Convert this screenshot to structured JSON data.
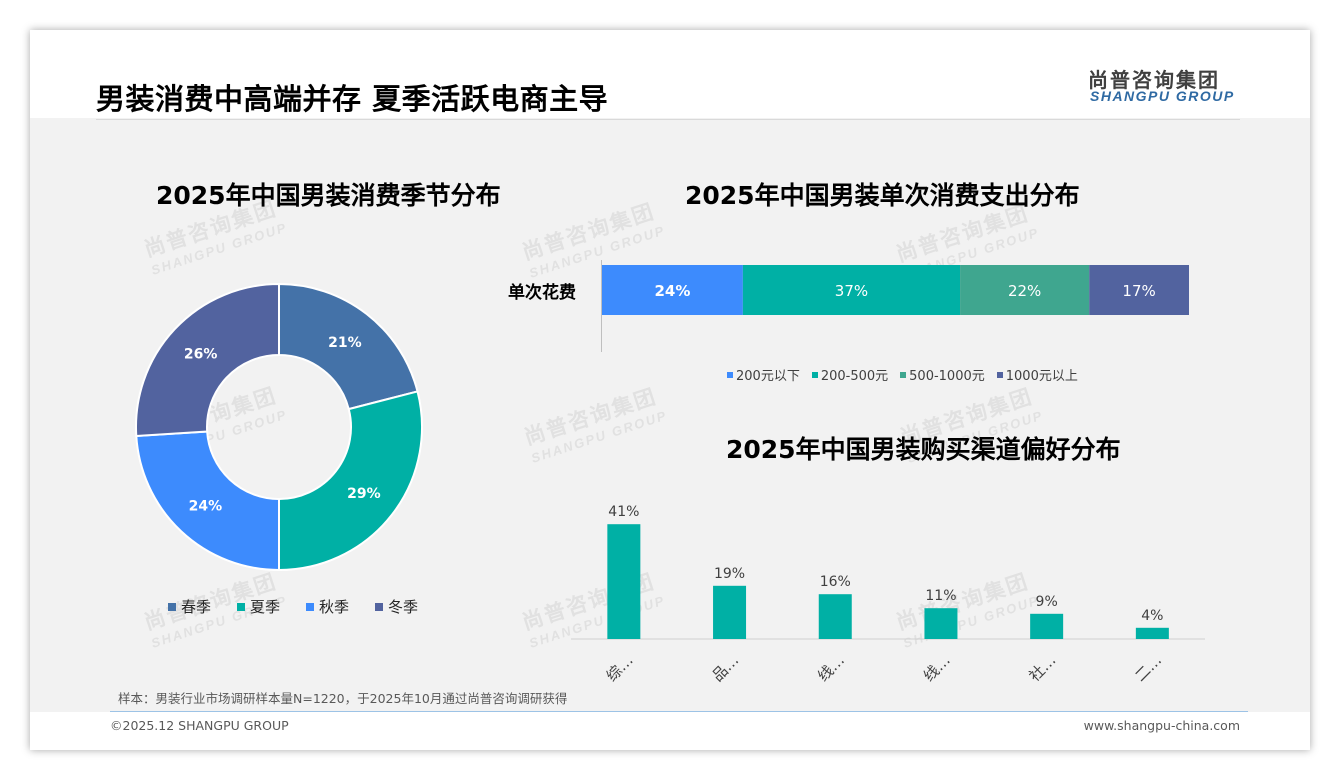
{
  "header": {
    "title": "男装消费中高端并存 夏季活跃电商主导",
    "logo_cn": "尚普咨询集团",
    "logo_en": "SHANGPU GROUP"
  },
  "watermark": {
    "cn": "尚普咨询集团",
    "en": "SHANGPU GROUP"
  },
  "colors": {
    "spring": "#4472a8",
    "summer": "#00b0a5",
    "autumn": "#3d8bfd",
    "winter": "#52639f",
    "band_under_200": "#3d8bfd",
    "band_200_500": "#00b0a5",
    "band_500_1000": "#3fa68f",
    "band_over_1000": "#52639f",
    "channel_bar": "#00b0a5"
  },
  "chart_data": [
    {
      "type": "pie",
      "variant": "donut",
      "title": "2025年中国男装消费季节分布",
      "categories": [
        "春季",
        "夏季",
        "秋季",
        "冬季"
      ],
      "values": [
        21,
        29,
        24,
        26
      ],
      "labels": [
        "21%",
        "29%",
        "24%",
        "26%"
      ],
      "legend_position": "bottom"
    },
    {
      "type": "bar",
      "orientation": "horizontal",
      "stacked": true,
      "title": "2025年中国男装单次消费支出分布",
      "categories": [
        "单次花费"
      ],
      "series": [
        {
          "name": "200元以下",
          "values": [
            24
          ],
          "label": "24%"
        },
        {
          "name": "200-500元",
          "values": [
            37
          ],
          "label": "37%"
        },
        {
          "name": "500-1000元",
          "values": [
            22
          ],
          "label": "22%"
        },
        {
          "name": "1000元以上",
          "values": [
            17
          ],
          "label": "17%"
        }
      ],
      "legend_position": "bottom"
    },
    {
      "type": "bar",
      "title": "2025年中国男装购买渠道偏好分布",
      "categories": [
        "综…",
        "品…",
        "线…",
        "线…",
        "社…",
        "二…"
      ],
      "values": [
        41,
        19,
        16,
        11,
        9,
        4
      ],
      "labels": [
        "41%",
        "19%",
        "16%",
        "11%",
        "9%",
        "4%"
      ],
      "ylim": [
        0,
        45
      ],
      "grid": false
    }
  ],
  "footer": {
    "sample_note": "样本：男装行业市场调研样本量N=1220，于2025年10月通过尚普咨询调研获得",
    "copyright": "©2025.12 SHANGPU GROUP",
    "website": "www.shangpu-china.com"
  }
}
